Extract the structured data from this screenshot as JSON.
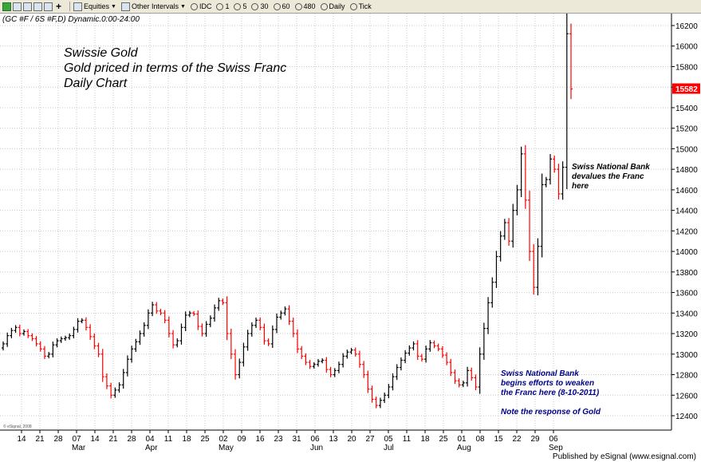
{
  "toolbar": {
    "equities_label": "Equities",
    "intervals_label": "Other Intervals",
    "buttons": [
      "IDC",
      "1",
      "5",
      "30",
      "60",
      "480",
      "Daily",
      "Tick"
    ]
  },
  "chart_header": "(GC #F / 6S #F,D) Dynamic.0:00-24:00",
  "chart_data": {
    "type": "ohlc-bar",
    "title_lines": [
      "Swissie Gold",
      "Gold priced in terms of the Swiss Franc",
      "Daily Chart"
    ],
    "ylim": [
      12200,
      16300
    ],
    "y_ticks": [
      12400,
      12600,
      12800,
      13000,
      13200,
      13400,
      13600,
      13800,
      14000,
      14200,
      14400,
      14600,
      14800,
      15000,
      15200,
      15400,
      15600,
      15800,
      16000,
      16200
    ],
    "last_price": "15582",
    "x_tick_labels": [
      "14",
      "21",
      "28",
      "07",
      "14",
      "21",
      "28",
      "04",
      "11",
      "18",
      "25",
      "02",
      "09",
      "16",
      "23",
      "31",
      "06",
      "13",
      "20",
      "27",
      "05",
      "11",
      "18",
      "25",
      "01",
      "08",
      "15",
      "22",
      "29",
      "06"
    ],
    "month_labels": [
      {
        "label": "Mar",
        "index": 3
      },
      {
        "label": "Apr",
        "index": 7
      },
      {
        "label": "May",
        "index": 11
      },
      {
        "label": "Jun",
        "index": 16
      },
      {
        "label": "Jul",
        "index": 20
      },
      {
        "label": "Aug",
        "index": 24
      },
      {
        "label": "Sep",
        "index": 29
      }
    ],
    "colors": {
      "up": "#000000",
      "down": "#ff0000",
      "annotation_blue": "#00008b",
      "last_price_box": "#ff0000"
    },
    "closes": [
      13100,
      13180,
      13230,
      13260,
      13200,
      13220,
      13180,
      13150,
      13100,
      13050,
      12980,
      13000,
      13090,
      13130,
      13150,
      13160,
      13180,
      13240,
      13320,
      13330,
      13260,
      13170,
      13080,
      13000,
      12780,
      12690,
      12600,
      12650,
      12700,
      12820,
      12950,
      13050,
      13120,
      13200,
      13280,
      13400,
      13480,
      13420,
      13400,
      13330,
      13200,
      13090,
      13130,
      13260,
      13380,
      13400,
      13390,
      13270,
      13200,
      13290,
      13350,
      13450,
      13520,
      13500,
      13200,
      13000,
      12800,
      12920,
      13070,
      13200,
      13280,
      13330,
      13260,
      13130,
      13100,
      13240,
      13360,
      13400,
      13440,
      13320,
      13200,
      13050,
      12980,
      12920,
      12880,
      12900,
      12930,
      12940,
      12850,
      12800,
      12840,
      12900,
      12980,
      13020,
      13040,
      13000,
      12900,
      12800,
      12660,
      12560,
      12500,
      12550,
      12600,
      12680,
      12780,
      12870,
      12940,
      13010,
      13060,
      13100,
      12980,
      12950,
      13050,
      13110,
      13080,
      13050,
      12990,
      12920,
      12820,
      12740,
      12700,
      12720,
      12840,
      12770,
      12680,
      13000,
      13250,
      13500,
      13700,
      13950,
      14150,
      14280,
      14100,
      14400,
      14600,
      14950,
      14500,
      14000,
      13650,
      14050,
      14650,
      14700,
      14900,
      14800,
      14560,
      14820,
      16120,
      15582
    ],
    "annotations": [
      {
        "lines": [
          "Swiss National Bank",
          "devalues the Franc",
          "here"
        ],
        "color": "#000000"
      },
      {
        "lines": [
          "Swiss National Bank",
          "begins efforts to weaken",
          "the Franc here (8-10-2011)"
        ],
        "color": "#00008b"
      },
      {
        "lines": [
          "Note the response of Gold"
        ],
        "color": "#00008b"
      }
    ],
    "watermark": "© eSignal, 2008"
  },
  "publisher": "Published by eSignal (www.esignal.com)"
}
